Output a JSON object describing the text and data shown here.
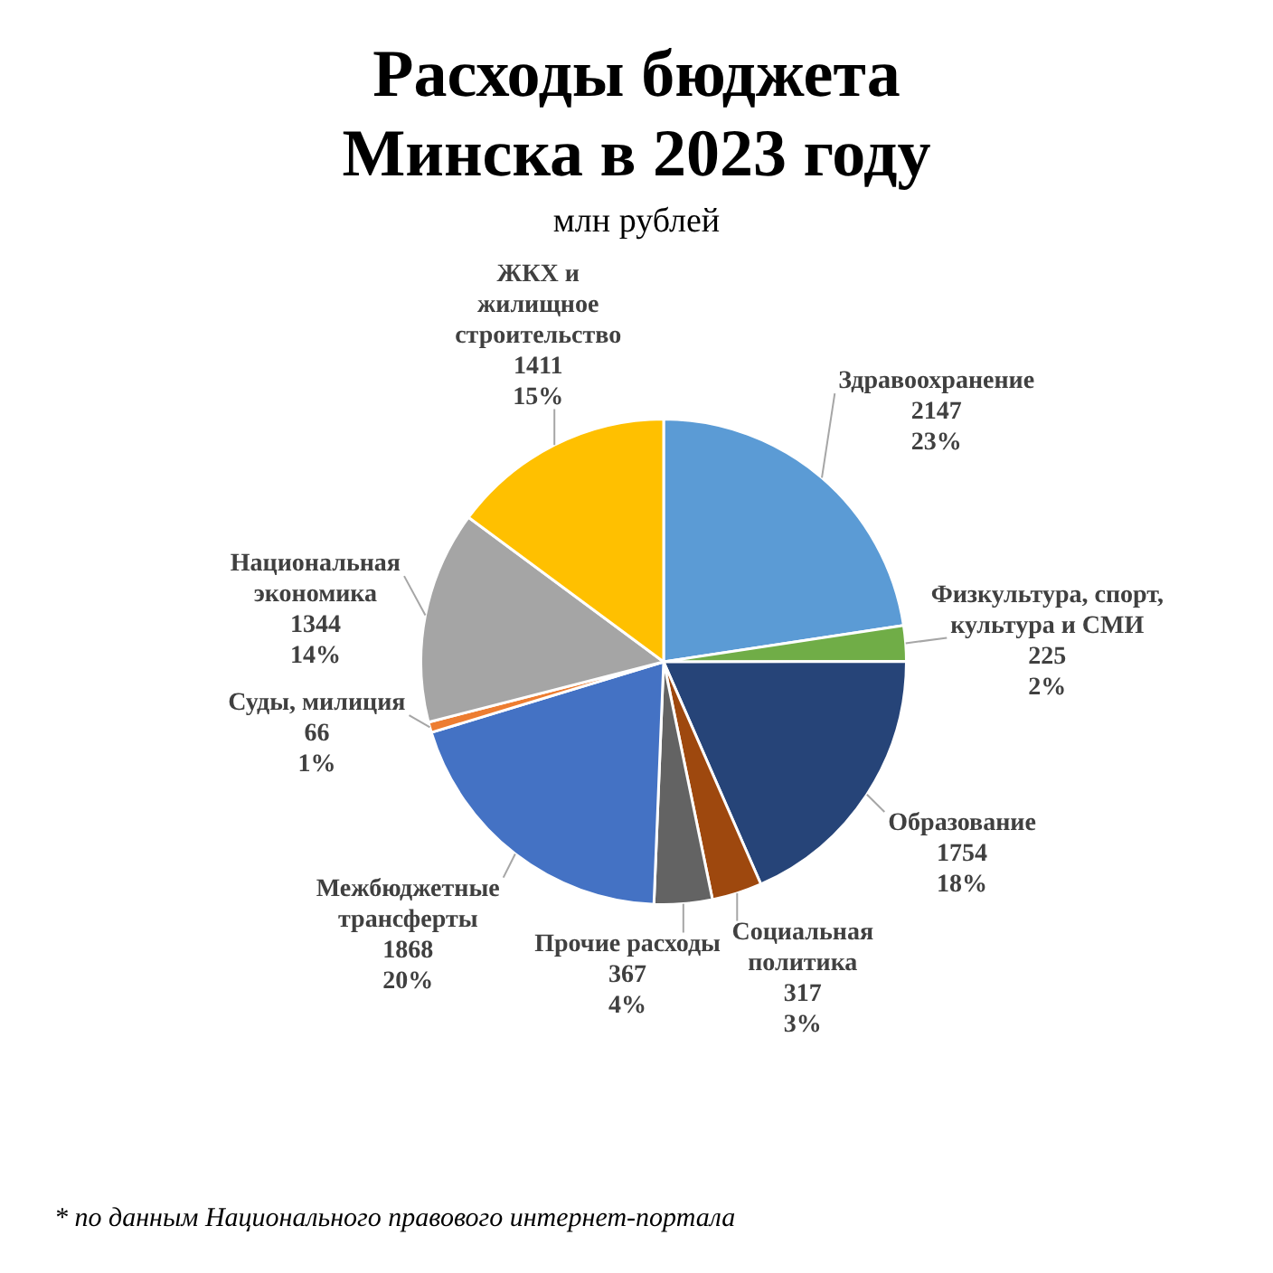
{
  "chart_data": {
    "type": "pie",
    "title": "Расходы бюджета Минска в 2023 году",
    "subtitle": "млн рублей",
    "categories": [
      "Здравоохранение",
      "Физкультура, спорт,\nкультура и СМИ",
      "Образование",
      "Социальная\nполитика",
      "Прочие расходы",
      "Межбюджетные\nтрансферты",
      "Суды, милиция",
      "Национальная\nэкономика",
      "ЖКХ и\nжилищное\nстроительство"
    ],
    "values": [
      2147,
      225,
      1754,
      317,
      367,
      1868,
      66,
      1344,
      1411
    ],
    "colors": [
      "#5b9bd5",
      "#70ad47",
      "#264478",
      "#9e480e",
      "#636363",
      "#4472c4",
      "#ed7d31",
      "#a5a5a5",
      "#ffc000"
    ],
    "value_labels": [
      "2147\n23%",
      "225\n2%",
      "1754\n18%",
      "317\n3%",
      "367\n4%",
      "1868\n20%",
      "66\n1%",
      "1344\n14%",
      "1411\n15%"
    ],
    "annotations": [
      "* по данным Национального правового интернет-портала"
    ]
  }
}
